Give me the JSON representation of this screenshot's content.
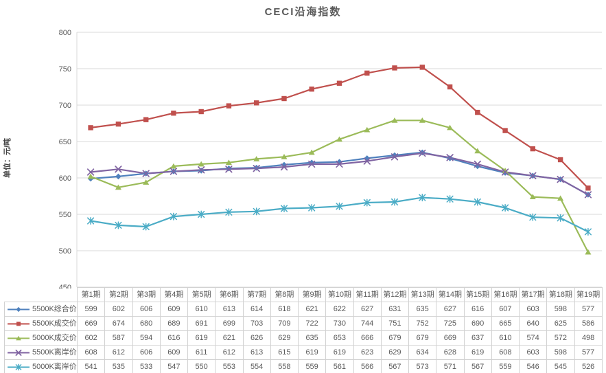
{
  "chart": {
    "title": "CECI沿海指数",
    "y_unit": "单位：元/吨"
  },
  "chart_data": {
    "type": "line",
    "title": "CECI沿海指数",
    "ylabel": "单位：元/吨",
    "ylim": [
      450,
      800
    ],
    "y_step": 50,
    "grid": true,
    "legend_position": "data-table-left",
    "data_table": true,
    "categories": [
      "第1期",
      "第2期",
      "第3期",
      "第4期",
      "第5期",
      "第6期",
      "第7期",
      "第8期",
      "第9期",
      "第10期",
      "第11期",
      "第12期",
      "第13期",
      "第14期",
      "第15期",
      "第16期",
      "第17期",
      "第18期",
      "第19期"
    ],
    "series": [
      {
        "name": "5500K综合价",
        "marker": "diamond",
        "color": "#4F81BD",
        "values": [
          599,
          602,
          606,
          609,
          610,
          613,
          614,
          618,
          621,
          622,
          627,
          631,
          635,
          627,
          616,
          607,
          603,
          598,
          577
        ]
      },
      {
        "name": "5500K成交价",
        "marker": "square",
        "color": "#C0504D",
        "values": [
          669,
          674,
          680,
          689,
          691,
          699,
          703,
          709,
          722,
          730,
          744,
          751,
          752,
          725,
          690,
          665,
          640,
          625,
          586
        ]
      },
      {
        "name": "5000K成交价",
        "marker": "triangle",
        "color": "#9BBB59",
        "values": [
          602,
          587,
          594,
          616,
          619,
          621,
          626,
          629,
          635,
          653,
          666,
          679,
          679,
          669,
          637,
          610,
          574,
          572,
          498
        ]
      },
      {
        "name": "5500K离岸价",
        "marker": "x",
        "color": "#8064A2",
        "values": [
          608,
          612,
          606,
          609,
          611,
          612,
          613,
          615,
          619,
          619,
          623,
          629,
          634,
          628,
          619,
          608,
          603,
          598,
          577
        ]
      },
      {
        "name": "5000K离岸价",
        "marker": "star",
        "color": "#4BACC6",
        "values": [
          541,
          535,
          533,
          547,
          550,
          553,
          554,
          558,
          559,
          561,
          566,
          567,
          573,
          571,
          567,
          559,
          546,
          545,
          526
        ]
      }
    ]
  }
}
